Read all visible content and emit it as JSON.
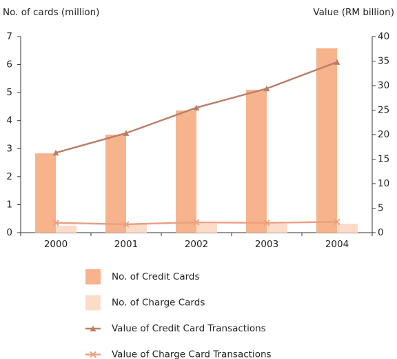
{
  "chart_data": {
    "type": "bar",
    "y_label": "No. of cards (million)",
    "y2_label": "Value (RM billion)",
    "categories": [
      "2000",
      "2001",
      "2002",
      "2003",
      "2004"
    ],
    "ylim": [
      0,
      7
    ],
    "yticks": [
      0,
      1,
      2,
      3,
      4,
      5,
      6,
      7
    ],
    "y2lim": [
      0,
      40
    ],
    "y2ticks": [
      0,
      5,
      10,
      15,
      20,
      25,
      30,
      35,
      40
    ],
    "series": [
      {
        "name": "No. of Credit Cards",
        "type": "bar",
        "color": "#f7b38b",
        "values": [
          2.83,
          3.5,
          4.36,
          5.1,
          6.58
        ]
      },
      {
        "name": "No. of Charge Cards",
        "type": "bar",
        "color": "#fcdcc8",
        "values": [
          0.25,
          0.3,
          0.32,
          0.32,
          0.32
        ]
      },
      {
        "name": "Value of Credit Card Transactions",
        "type": "line",
        "axis": "y2",
        "marker": "triangle",
        "color": "#b98068",
        "values": [
          16.3,
          20.3,
          25.5,
          29.4,
          34.8
        ]
      },
      {
        "name": "Value of Charge Card Transactions",
        "type": "line",
        "axis": "y2",
        "marker": "x",
        "color": "#e9a184",
        "values": [
          2.0,
          1.7,
          2.1,
          2.0,
          2.2
        ]
      }
    ]
  }
}
